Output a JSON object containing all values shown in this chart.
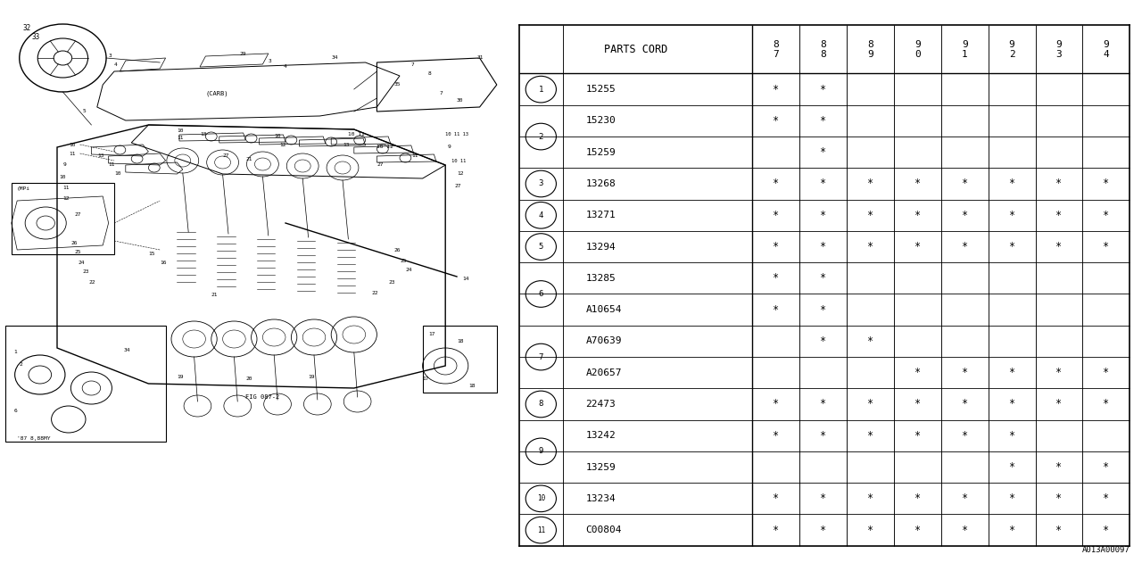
{
  "bg_color": "#ffffff",
  "diagram_color": "#000000",
  "footer_code": "A013A00097",
  "table": {
    "rows": [
      {
        "num": "1",
        "part": "15255",
        "marks": [
          1,
          1,
          0,
          0,
          0,
          0,
          0,
          0
        ],
        "group_start": true
      },
      {
        "num": "2",
        "part": "15230",
        "marks": [
          1,
          1,
          0,
          0,
          0,
          0,
          0,
          0
        ],
        "group_start": true
      },
      {
        "num": "2",
        "part": "15259",
        "marks": [
          0,
          1,
          0,
          0,
          0,
          0,
          0,
          0
        ],
        "group_start": false
      },
      {
        "num": "3",
        "part": "13268",
        "marks": [
          1,
          1,
          1,
          1,
          1,
          1,
          1,
          1
        ],
        "group_start": true
      },
      {
        "num": "4",
        "part": "13271",
        "marks": [
          1,
          1,
          1,
          1,
          1,
          1,
          1,
          1
        ],
        "group_start": true
      },
      {
        "num": "5",
        "part": "13294",
        "marks": [
          1,
          1,
          1,
          1,
          1,
          1,
          1,
          1
        ],
        "group_start": true
      },
      {
        "num": "6",
        "part": "13285",
        "marks": [
          1,
          1,
          0,
          0,
          0,
          0,
          0,
          0
        ],
        "group_start": true
      },
      {
        "num": "",
        "part": "A10654",
        "marks": [
          1,
          1,
          0,
          0,
          0,
          0,
          0,
          0
        ],
        "group_start": false
      },
      {
        "num": "7",
        "part": "A70639",
        "marks": [
          0,
          1,
          1,
          0,
          0,
          0,
          0,
          0
        ],
        "group_start": true
      },
      {
        "num": "",
        "part": "A20657",
        "marks": [
          0,
          0,
          0,
          1,
          1,
          1,
          1,
          1
        ],
        "group_start": false
      },
      {
        "num": "8",
        "part": "22473",
        "marks": [
          1,
          1,
          1,
          1,
          1,
          1,
          1,
          1
        ],
        "group_start": true
      },
      {
        "num": "9",
        "part": "13242",
        "marks": [
          1,
          1,
          1,
          1,
          1,
          1,
          0,
          0
        ],
        "group_start": true
      },
      {
        "num": "9",
        "part": "13259",
        "marks": [
          0,
          0,
          0,
          0,
          0,
          1,
          1,
          1
        ],
        "group_start": false
      },
      {
        "num": "10",
        "part": "13234",
        "marks": [
          1,
          1,
          1,
          1,
          1,
          1,
          1,
          1
        ],
        "group_start": true
      },
      {
        "num": "11",
        "part": "C00804",
        "marks": [
          1,
          1,
          1,
          1,
          1,
          1,
          1,
          1
        ],
        "group_start": true
      }
    ],
    "year_headers": [
      "8\n7",
      "8\n8",
      "8\n9",
      "9\n0",
      "9\n1",
      "9\n2",
      "9\n3",
      "9\n4"
    ]
  }
}
